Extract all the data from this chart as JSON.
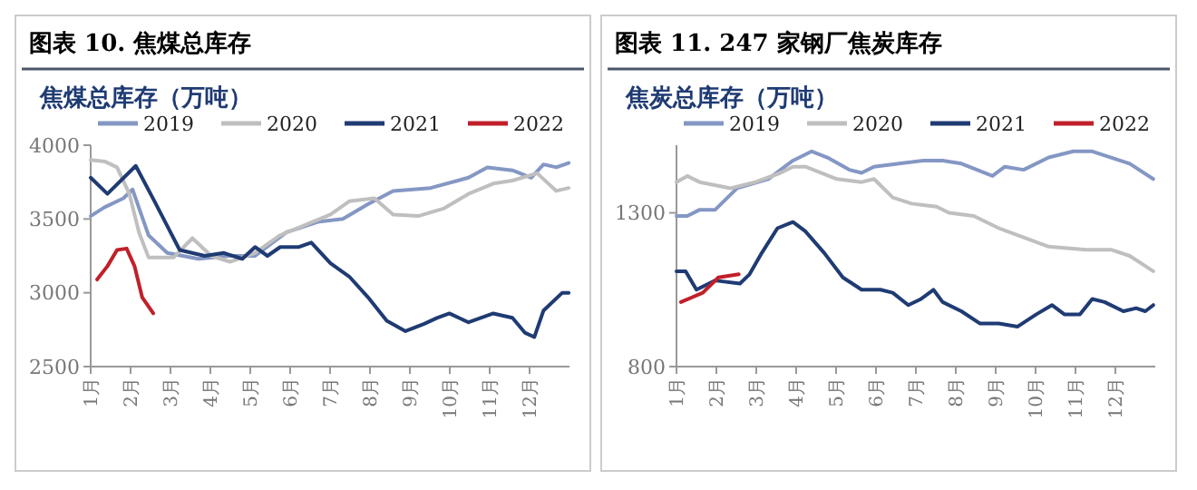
{
  "chart_data": [
    {
      "type": "line",
      "title": "图表 10. 焦煤总库存",
      "ylabel": "焦煤总库存（万吨）",
      "legend": "top",
      "grid": false,
      "line_style": "solid",
      "marker": "none",
      "xlim": [
        1,
        13
      ],
      "xticks": [
        {
          "value": 1,
          "label": "1月"
        },
        {
          "value": 2,
          "label": "2月"
        },
        {
          "value": 3,
          "label": "3月"
        },
        {
          "value": 4,
          "label": "4月"
        },
        {
          "value": 5,
          "label": "5月"
        },
        {
          "value": 6,
          "label": "6月"
        },
        {
          "value": 7,
          "label": "7月"
        },
        {
          "value": 8,
          "label": "8月"
        },
        {
          "value": 9,
          "label": "9月"
        },
        {
          "value": 10,
          "label": "10月"
        },
        {
          "value": 11,
          "label": "11月"
        },
        {
          "value": 12,
          "label": "12月"
        }
      ],
      "ylim": [
        2500,
        4000
      ],
      "yticks": [
        2500,
        3000,
        3500,
        4000
      ],
      "series": [
        {
          "name": "2019",
          "color": "#8497c4",
          "x": [
            1,
            1.35,
            1.82,
            2.05,
            2.45,
            2.92,
            3.7,
            4.49,
            5.12,
            5.91,
            6.69,
            7.32,
            7.95,
            8.58,
            9.52,
            10.47,
            10.94,
            11.57,
            12.04,
            12.35,
            12.67,
            12.98
          ],
          "values": [
            3520,
            3580,
            3640,
            3700,
            3390,
            3270,
            3230,
            3250,
            3250,
            3410,
            3480,
            3500,
            3600,
            3690,
            3710,
            3780,
            3850,
            3830,
            3780,
            3870,
            3850,
            3880
          ]
        },
        {
          "name": "2020",
          "color": "#bfbfbf",
          "x": [
            1,
            1.35,
            1.66,
            1.97,
            2.21,
            2.45,
            3.08,
            3.55,
            4.02,
            4.49,
            5.12,
            5.75,
            6.38,
            7.01,
            7.48,
            8.11,
            8.58,
            9.21,
            9.84,
            10.47,
            11.09,
            11.57,
            12.19,
            12.67,
            12.98
          ],
          "values": [
            3900,
            3890,
            3850,
            3670,
            3410,
            3240,
            3240,
            3370,
            3250,
            3210,
            3270,
            3390,
            3460,
            3530,
            3620,
            3640,
            3530,
            3520,
            3570,
            3670,
            3740,
            3760,
            3810,
            3690,
            3710
          ]
        },
        {
          "name": "2021",
          "color": "#1f3b73",
          "x": [
            1,
            1.42,
            2.13,
            2.6,
            3.23,
            3.86,
            4.33,
            4.8,
            5.12,
            5.43,
            5.75,
            6.22,
            6.53,
            7.01,
            7.48,
            7.95,
            8.42,
            8.89,
            9.36,
            9.68,
            9.99,
            10.47,
            11.09,
            11.57,
            11.88,
            12.12,
            12.35,
            12.82,
            12.98
          ],
          "values": [
            3780,
            3670,
            3860,
            3620,
            3290,
            3250,
            3270,
            3230,
            3310,
            3250,
            3310,
            3310,
            3340,
            3200,
            3110,
            2970,
            2810,
            2740,
            2790,
            2830,
            2860,
            2800,
            2860,
            2830,
            2730,
            2700,
            2880,
            3000,
            3000
          ]
        },
        {
          "name": "2022",
          "color": "#c0202a",
          "x": [
            1.16,
            1.42,
            1.66,
            1.9,
            2.1,
            2.29,
            2.57
          ],
          "values": [
            3090,
            3180,
            3290,
            3300,
            3180,
            2970,
            2860
          ]
        }
      ]
    },
    {
      "type": "line",
      "title": "图表 11. 247 家钢厂焦炭库存",
      "ylabel": "焦炭总库存（万吨）",
      "legend": "top",
      "grid": false,
      "line_style": "solid",
      "marker": "none",
      "xlim": [
        1,
        13
      ],
      "xticks": [
        {
          "value": 1,
          "label": "1月"
        },
        {
          "value": 2,
          "label": "2月"
        },
        {
          "value": 3,
          "label": "3月"
        },
        {
          "value": 4,
          "label": "4月"
        },
        {
          "value": 5,
          "label": "5月"
        },
        {
          "value": 6,
          "label": "6月"
        },
        {
          "value": 7,
          "label": "7月"
        },
        {
          "value": 8,
          "label": "8月"
        },
        {
          "value": 9,
          "label": "9月"
        },
        {
          "value": 10,
          "label": "10月"
        },
        {
          "value": 11,
          "label": "11月"
        },
        {
          "value": 12,
          "label": "12月"
        }
      ],
      "ylim": [
        800,
        1520
      ],
      "yticks": [
        800,
        1300
      ],
      "series": [
        {
          "name": "2019",
          "color": "#8497c4",
          "x": [
            1,
            1.27,
            1.58,
            1.97,
            2.52,
            3.3,
            3.92,
            4.39,
            4.78,
            5.33,
            5.64,
            5.95,
            6.58,
            7.2,
            7.67,
            8.14,
            8.92,
            9.23,
            9.7,
            10.33,
            10.95,
            11.42,
            11.89,
            12.36,
            12.95
          ],
          "values": [
            1290,
            1290,
            1310,
            1310,
            1380,
            1410,
            1470,
            1500,
            1480,
            1440,
            1430,
            1450,
            1460,
            1470,
            1470,
            1460,
            1420,
            1450,
            1440,
            1480,
            1500,
            1500,
            1480,
            1460,
            1410
          ]
        },
        {
          "name": "2020",
          "color": "#bfbfbf",
          "x": [
            1,
            1.27,
            1.58,
            2.36,
            2.98,
            3.61,
            3.92,
            4.23,
            5.02,
            5.64,
            5.95,
            6.42,
            6.89,
            7.52,
            7.83,
            8.45,
            9.08,
            9.7,
            10.33,
            11.27,
            11.89,
            12.36,
            12.95
          ],
          "values": [
            1400,
            1420,
            1400,
            1380,
            1400,
            1430,
            1450,
            1450,
            1410,
            1400,
            1410,
            1350,
            1330,
            1320,
            1300,
            1290,
            1250,
            1220,
            1190,
            1180,
            1180,
            1160,
            1110
          ]
        },
        {
          "name": "2021",
          "color": "#1f3b73",
          "x": [
            1,
            1.23,
            1.5,
            1.97,
            2.59,
            2.83,
            3.14,
            3.53,
            3.92,
            4.23,
            4.7,
            5.17,
            5.64,
            6.11,
            6.42,
            6.81,
            7.13,
            7.44,
            7.67,
            8.14,
            8.61,
            9.08,
            9.55,
            10.02,
            10.41,
            10.72,
            11.11,
            11.42,
            11.73,
            12.2,
            12.52,
            12.75,
            12.95
          ],
          "values": [
            1110,
            1110,
            1050,
            1080,
            1070,
            1100,
            1170,
            1250,
            1270,
            1240,
            1170,
            1090,
            1050,
            1050,
            1040,
            1000,
            1020,
            1050,
            1010,
            980,
            940,
            940,
            930,
            970,
            1000,
            970,
            970,
            1020,
            1010,
            980,
            990,
            980,
            1000
          ]
        },
        {
          "name": "2022",
          "color": "#c0202a",
          "x": [
            1.11,
            1.66,
            2.05,
            2.56
          ],
          "values": [
            1010,
            1040,
            1090,
            1100
          ]
        }
      ]
    }
  ]
}
